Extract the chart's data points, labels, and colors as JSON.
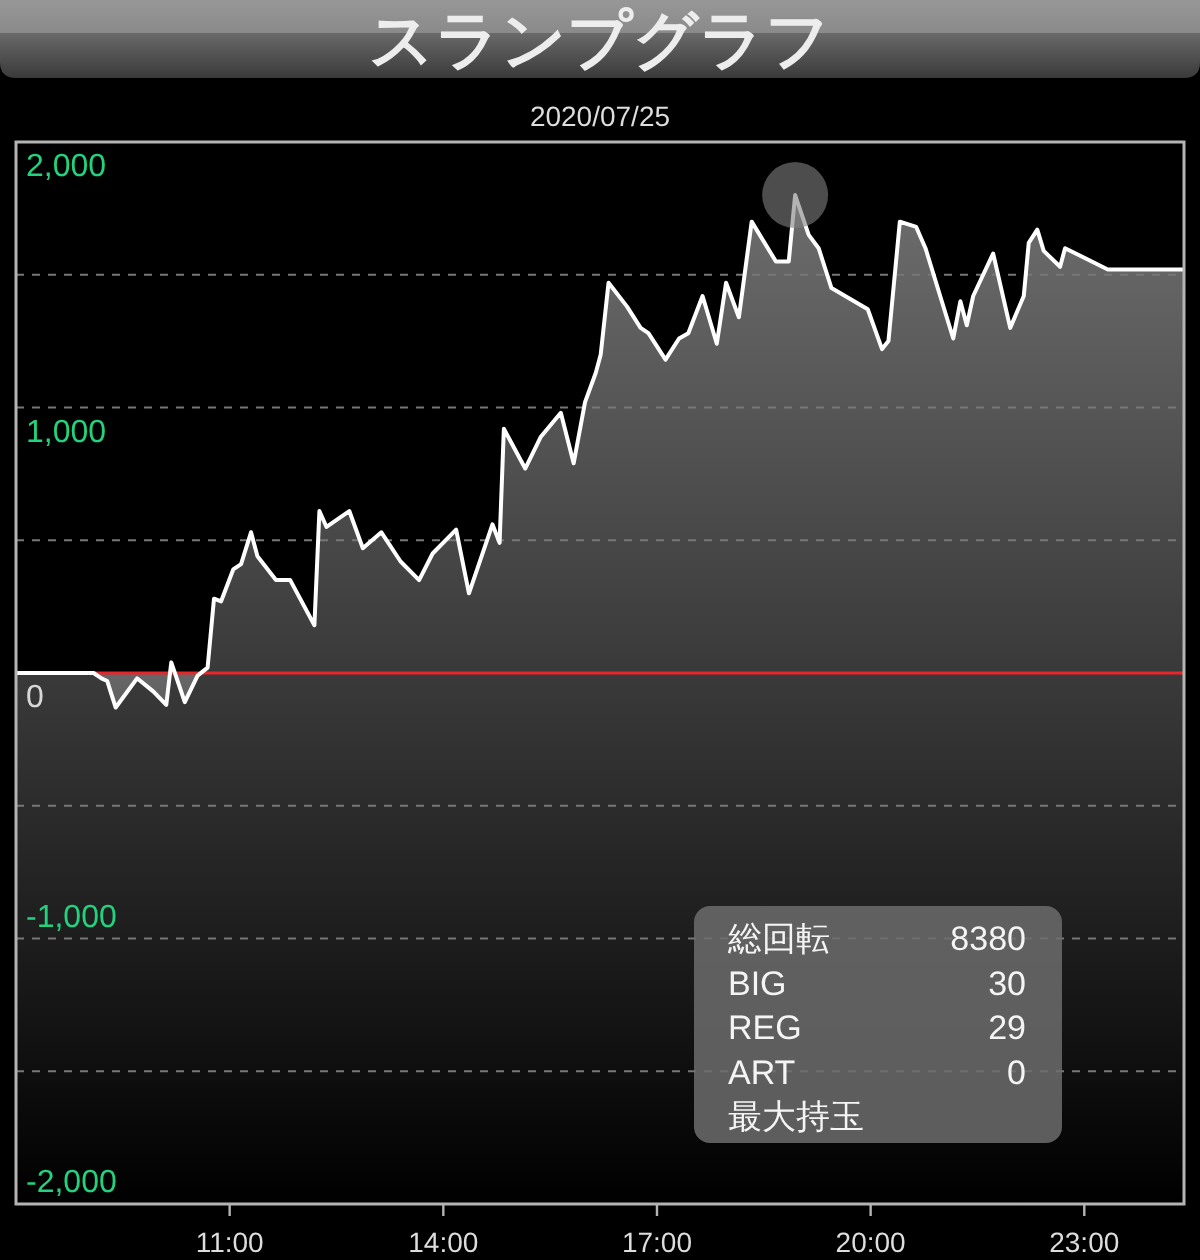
{
  "chart_data": {
    "type": "area",
    "title": "スランプグラフ",
    "subtitle": "2020/07/25",
    "xlim": [
      8,
      24.4
    ],
    "xticks": [
      {
        "value": 11,
        "label": "11:00"
      },
      {
        "value": 14,
        "label": "14:00"
      },
      {
        "value": 17,
        "label": "17:00"
      },
      {
        "value": 20,
        "label": "20:00"
      },
      {
        "value": 23,
        "label": "23:00"
      }
    ],
    "ylim": [
      -2000,
      2000
    ],
    "yticks": [
      {
        "value": -2000,
        "label": "-2,000"
      },
      {
        "value": -1500,
        "label": null
      },
      {
        "value": -1000,
        "label": "-1,000"
      },
      {
        "value": -500,
        "label": null
      },
      0,
      {
        "value": 500,
        "label": null
      },
      {
        "value": 1000,
        "label": "1,000"
      },
      {
        "value": 1500,
        "label": null
      },
      {
        "value": 2000,
        "label": "2,000"
      }
    ],
    "grid": "y",
    "ref_lines": [
      {
        "axis": "y",
        "value": 0,
        "color": "#e8262a"
      }
    ],
    "bands": [
      {
        "axis": "y",
        "from": -2000,
        "to": 0,
        "color": "#3a3a3a"
      }
    ],
    "series": [
      {
        "color": "#ffffff",
        "x": [
          8.0,
          9.09,
          9.2,
          9.28,
          9.4,
          9.7,
          9.93,
          10.11,
          10.18,
          10.37,
          10.55,
          10.69,
          10.78,
          10.88,
          11.05,
          11.16,
          11.3,
          11.39,
          11.65,
          11.85,
          12.19,
          12.26,
          12.36,
          12.68,
          12.87,
          13.13,
          13.4,
          13.66,
          13.85,
          14.18,
          14.36,
          14.69,
          14.79,
          14.85,
          15.15,
          15.37,
          15.65,
          15.83,
          15.99,
          16.14,
          16.21,
          16.32,
          16.58,
          16.77,
          16.88,
          17.12,
          17.31,
          17.44,
          17.64,
          17.84,
          17.97,
          18.15,
          18.33,
          18.67,
          18.85,
          18.94,
          19.13,
          19.27,
          19.45,
          19.96,
          20.16,
          20.25,
          20.41,
          20.64,
          20.77,
          21.16,
          21.26,
          21.35,
          21.44,
          21.72,
          21.96,
          22.15,
          22.22,
          22.34,
          22.43,
          22.66,
          22.73,
          23.33,
          24.4
        ],
        "values": [
          0,
          0,
          -20,
          -30,
          -130,
          -20,
          -70,
          -120,
          40,
          -110,
          -10,
          20,
          280,
          270,
          390,
          410,
          530,
          440,
          350,
          350,
          180,
          610,
          550,
          610,
          470,
          530,
          420,
          350,
          450,
          540,
          300,
          560,
          490,
          920,
          770,
          890,
          980,
          790,
          1020,
          1130,
          1200,
          1470,
          1380,
          1300,
          1280,
          1180,
          1260,
          1280,
          1420,
          1240,
          1470,
          1340,
          1700,
          1550,
          1550,
          1800,
          1650,
          1600,
          1450,
          1370,
          1220,
          1250,
          1700,
          1680,
          1600,
          1260,
          1400,
          1310,
          1420,
          1580,
          1300,
          1420,
          1620,
          1670,
          1590,
          1530,
          1600,
          1520,
          1520
        ]
      },
      {
        "type": "scatter",
        "marker": "circle",
        "color": "#808080",
        "x": [
          18.94
        ],
        "values": [
          1800
        ]
      }
    ],
    "annotations": [
      "総回転",
      "8380",
      "BIG",
      "30",
      "REG",
      "29",
      "ART",
      "0",
      "最大持玉"
    ]
  }
}
